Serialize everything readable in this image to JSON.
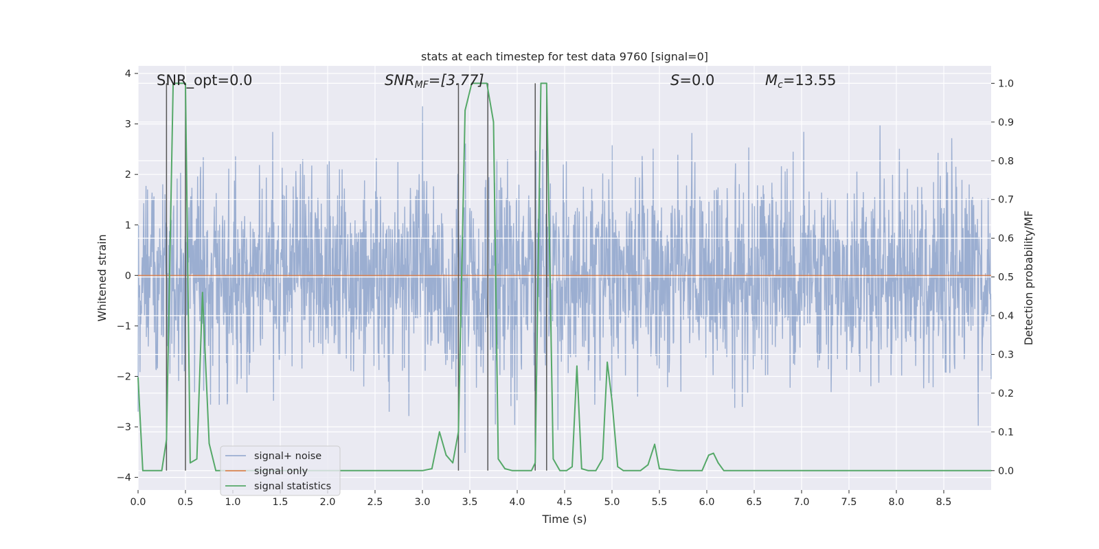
{
  "chart_data": {
    "type": "line",
    "title": "stats at each timestep for test data 9760 [signal=0]",
    "xlabel": "Time (s)",
    "ylabel_left": "Whitened strain",
    "ylabel_right": "Detection probability/MF",
    "xlim": [
      0.0,
      9.0
    ],
    "ylim_left": [
      -4.25,
      4.15
    ],
    "ylim_right": [
      -0.05,
      1.045
    ],
    "x_ticks": [
      0.0,
      0.5,
      1.0,
      1.5,
      2.0,
      2.5,
      3.0,
      3.5,
      4.0,
      4.5,
      5.0,
      5.5,
      6.0,
      6.5,
      7.0,
      7.5,
      8.0,
      8.5
    ],
    "x_tick_labels": [
      "0.0",
      "0.5",
      "1.0",
      "1.5",
      "2.0",
      "2.5",
      "3.0",
      "3.5",
      "4.0",
      "4.5",
      "5.0",
      "5.5",
      "6.0",
      "6.5",
      "7.0",
      "7.5",
      "8.0",
      "8.5"
    ],
    "y_left_ticks": [
      4,
      3,
      2,
      1,
      0,
      -1,
      -2,
      -3,
      -4
    ],
    "y_left_tick_labels": [
      "4",
      "3",
      "2",
      "1",
      "0",
      "−1",
      "−2",
      "−3",
      "−4"
    ],
    "y_right_ticks": [
      1.0,
      0.9,
      0.8,
      0.7,
      0.6,
      0.5,
      0.4,
      0.3,
      0.2,
      0.1,
      0.0
    ],
    "y_right_tick_labels": [
      "1.0",
      "0.9",
      "0.8",
      "0.7",
      "0.6",
      "0.5",
      "0.4",
      "0.3",
      "0.2",
      "0.1",
      "0.0"
    ],
    "annotations": {
      "snr_opt": "SNR_opt=0.0",
      "snr_mf_main": "SNR",
      "snr_mf_sub": "MF",
      "snr_mf_value": "=[3.77]",
      "s_main": "S",
      "s_value": "=0.0",
      "mc_main": "M",
      "mc_sub": "c",
      "mc_value": "=13.55"
    },
    "vertical_markers_s": [
      0.3,
      0.5,
      3.38,
      3.69,
      4.19,
      4.31
    ],
    "legend": {
      "position": "lower-left",
      "entries": [
        {
          "label": "signal+ noise",
          "color": "#4c72b0"
        },
        {
          "label": "signal only",
          "color": "#dd8452"
        },
        {
          "label": "signal statistics",
          "color": "#55a868"
        }
      ]
    },
    "series": [
      {
        "name": "signal+ noise",
        "axis": "left",
        "color": "#4c72b0",
        "alpha": 0.5,
        "description_stats": {
          "n_samples": 2250,
          "std": 1.0,
          "x_start": 0.0,
          "x_end": 9.0
        }
      },
      {
        "name": "signal only",
        "axis": "left",
        "color": "#dd8452",
        "x": [
          0.0,
          9.0
        ],
        "y": [
          0.0,
          0.0
        ]
      },
      {
        "name": "signal statistics",
        "axis": "right",
        "color": "#55a868",
        "x": [
          0.0,
          0.05,
          0.25,
          0.3,
          0.37,
          0.5,
          0.55,
          0.62,
          0.68,
          0.75,
          0.82,
          3.0,
          3.1,
          3.18,
          3.25,
          3.32,
          3.38,
          3.45,
          3.52,
          3.6,
          3.68,
          3.75,
          3.8,
          3.87,
          3.95,
          4.15,
          4.19,
          4.25,
          4.31,
          4.38,
          4.45,
          4.52,
          4.58,
          4.63,
          4.68,
          4.75,
          4.83,
          4.9,
          4.95,
          5.0,
          5.06,
          5.12,
          5.3,
          5.38,
          5.45,
          5.5,
          5.7,
          5.95,
          6.02,
          6.07,
          6.12,
          6.18,
          6.25,
          9.0
        ],
        "y": [
          0.24,
          0.0,
          0.0,
          0.08,
          1.0,
          1.0,
          0.02,
          0.03,
          0.46,
          0.07,
          0.0,
          0.0,
          0.005,
          0.1,
          0.04,
          0.02,
          0.1,
          0.93,
          1.0,
          1.0,
          1.0,
          0.9,
          0.03,
          0.005,
          0.0,
          0.0,
          0.02,
          1.0,
          1.0,
          0.03,
          0.0,
          0.0,
          0.01,
          0.27,
          0.005,
          0.0,
          0.0,
          0.03,
          0.28,
          0.18,
          0.01,
          0.0,
          0.0,
          0.015,
          0.068,
          0.005,
          0.0,
          0.0,
          0.04,
          0.045,
          0.02,
          0.0,
          0.0,
          0.0
        ]
      }
    ]
  }
}
